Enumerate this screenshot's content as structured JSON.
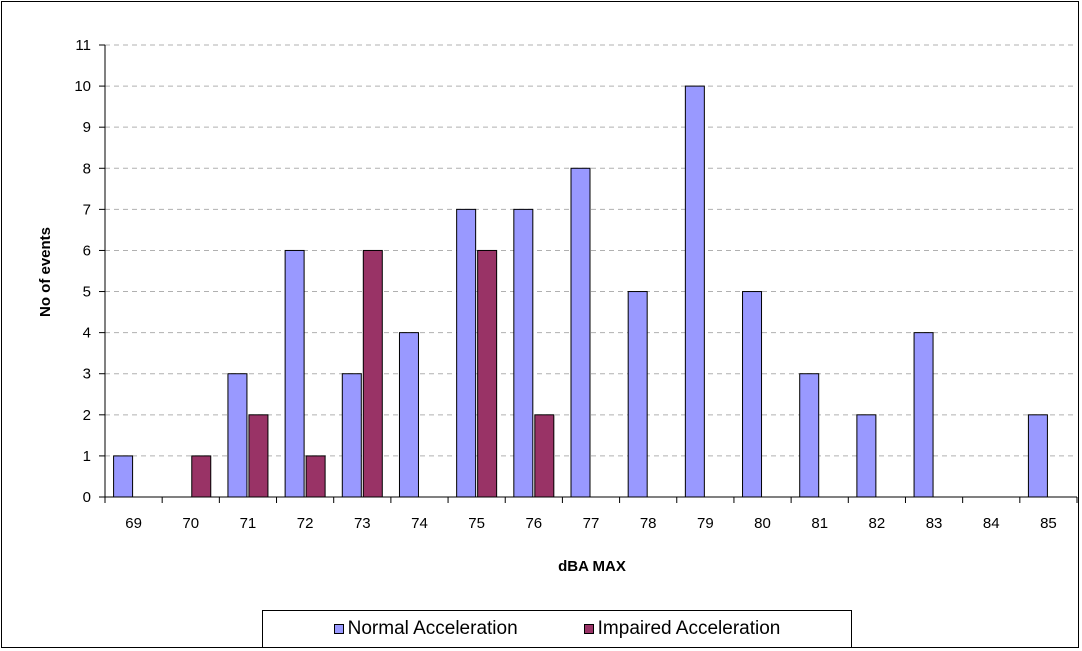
{
  "chart_data": {
    "type": "bar",
    "categories": [
      "69",
      "70",
      "71",
      "72",
      "73",
      "74",
      "75",
      "76",
      "77",
      "78",
      "79",
      "80",
      "81",
      "82",
      "83",
      "84",
      "85"
    ],
    "series": [
      {
        "name": "Normal Acceleration",
        "values": [
          1,
          0,
          3,
          6,
          3,
          4,
          7,
          7,
          8,
          5,
          10,
          5,
          3,
          2,
          4,
          0,
          2
        ],
        "color": "#9999ff"
      },
      {
        "name": "Impaired Acceleration",
        "values": [
          0,
          1,
          2,
          1,
          6,
          0,
          6,
          2,
          0,
          0,
          0,
          0,
          0,
          0,
          0,
          0,
          0
        ],
        "color": "#993366"
      }
    ],
    "title": "",
    "xlabel": "dBA MAX",
    "ylabel": "No of events",
    "ylim": [
      0,
      11
    ],
    "yticks": [
      "0",
      "1",
      "2",
      "3",
      "4",
      "5",
      "6",
      "7",
      "8",
      "9",
      "10",
      "11"
    ],
    "grid": "horizontal dashed",
    "legend_position": "bottom"
  },
  "legend": {
    "items": [
      {
        "label": "Normal Acceleration",
        "color": "#9999ff"
      },
      {
        "label": "Impaired Acceleration",
        "color": "#993366"
      }
    ]
  }
}
